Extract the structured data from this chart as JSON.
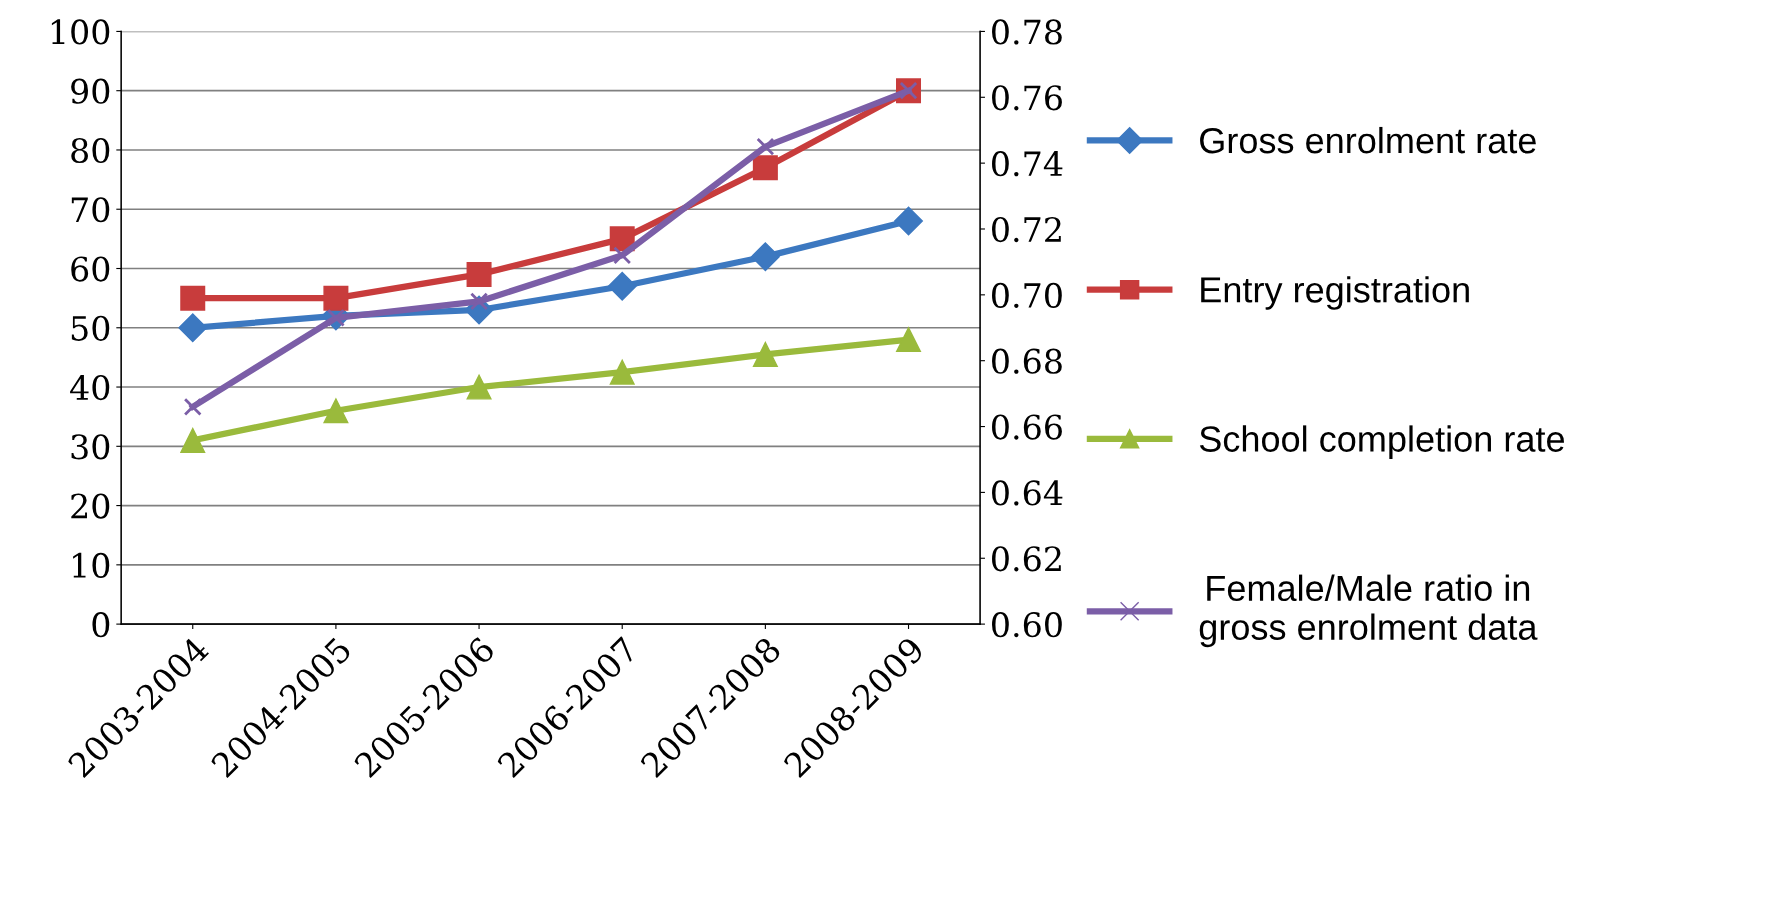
{
  "chart_data": {
    "type": "line",
    "categories": [
      "2003-2004",
      "2004-2005",
      "2005-2006",
      "2006-2007",
      "2007-2008",
      "2008-2009"
    ],
    "series": [
      {
        "name": "Gross enrolment rate",
        "color": "#3c78c0",
        "marker": "diamond",
        "values": [
          50,
          52,
          53,
          57,
          62,
          68
        ]
      },
      {
        "name": "Entry registration",
        "color": "#c83c3c",
        "marker": "square",
        "values": [
          55,
          55,
          59,
          65,
          77,
          90
        ]
      },
      {
        "name": "School completion rate",
        "color": "#9aba3c",
        "marker": "triangle",
        "values": [
          31,
          36,
          40,
          42.5,
          45.5,
          48
        ]
      },
      {
        "name": "Female/Male ratio in\ngross enrolment data",
        "color": "#7b5ea7",
        "marker": "cross",
        "axis": "y2",
        "values": [
          0.666,
          0.693,
          0.698,
          0.712,
          0.745,
          0.762
        ]
      }
    ],
    "ylim": [
      0,
      100
    ],
    "yticks": [
      0,
      10,
      20,
      30,
      40,
      50,
      60,
      70,
      80,
      90,
      100
    ],
    "y2lim": [
      0.6,
      0.78
    ],
    "y2ticks": [
      {
        "value": 0.6,
        "label": "0.60"
      },
      {
        "value": 0.62,
        "label": "0.62"
      },
      {
        "value": 0.64,
        "label": "0.64"
      },
      {
        "value": 0.66,
        "label": "0.66"
      },
      {
        "value": 0.68,
        "label": "0.68"
      },
      {
        "value": 0.7,
        "label": "0.70"
      },
      {
        "value": 0.72,
        "label": "0.72"
      },
      {
        "value": 0.74,
        "label": "0.74"
      },
      {
        "value": 0.76,
        "label": "0.76"
      },
      {
        "value": 0.78,
        "label": "0.78"
      }
    ],
    "grid": "y",
    "legend": "right",
    "line_style": "solid"
  }
}
